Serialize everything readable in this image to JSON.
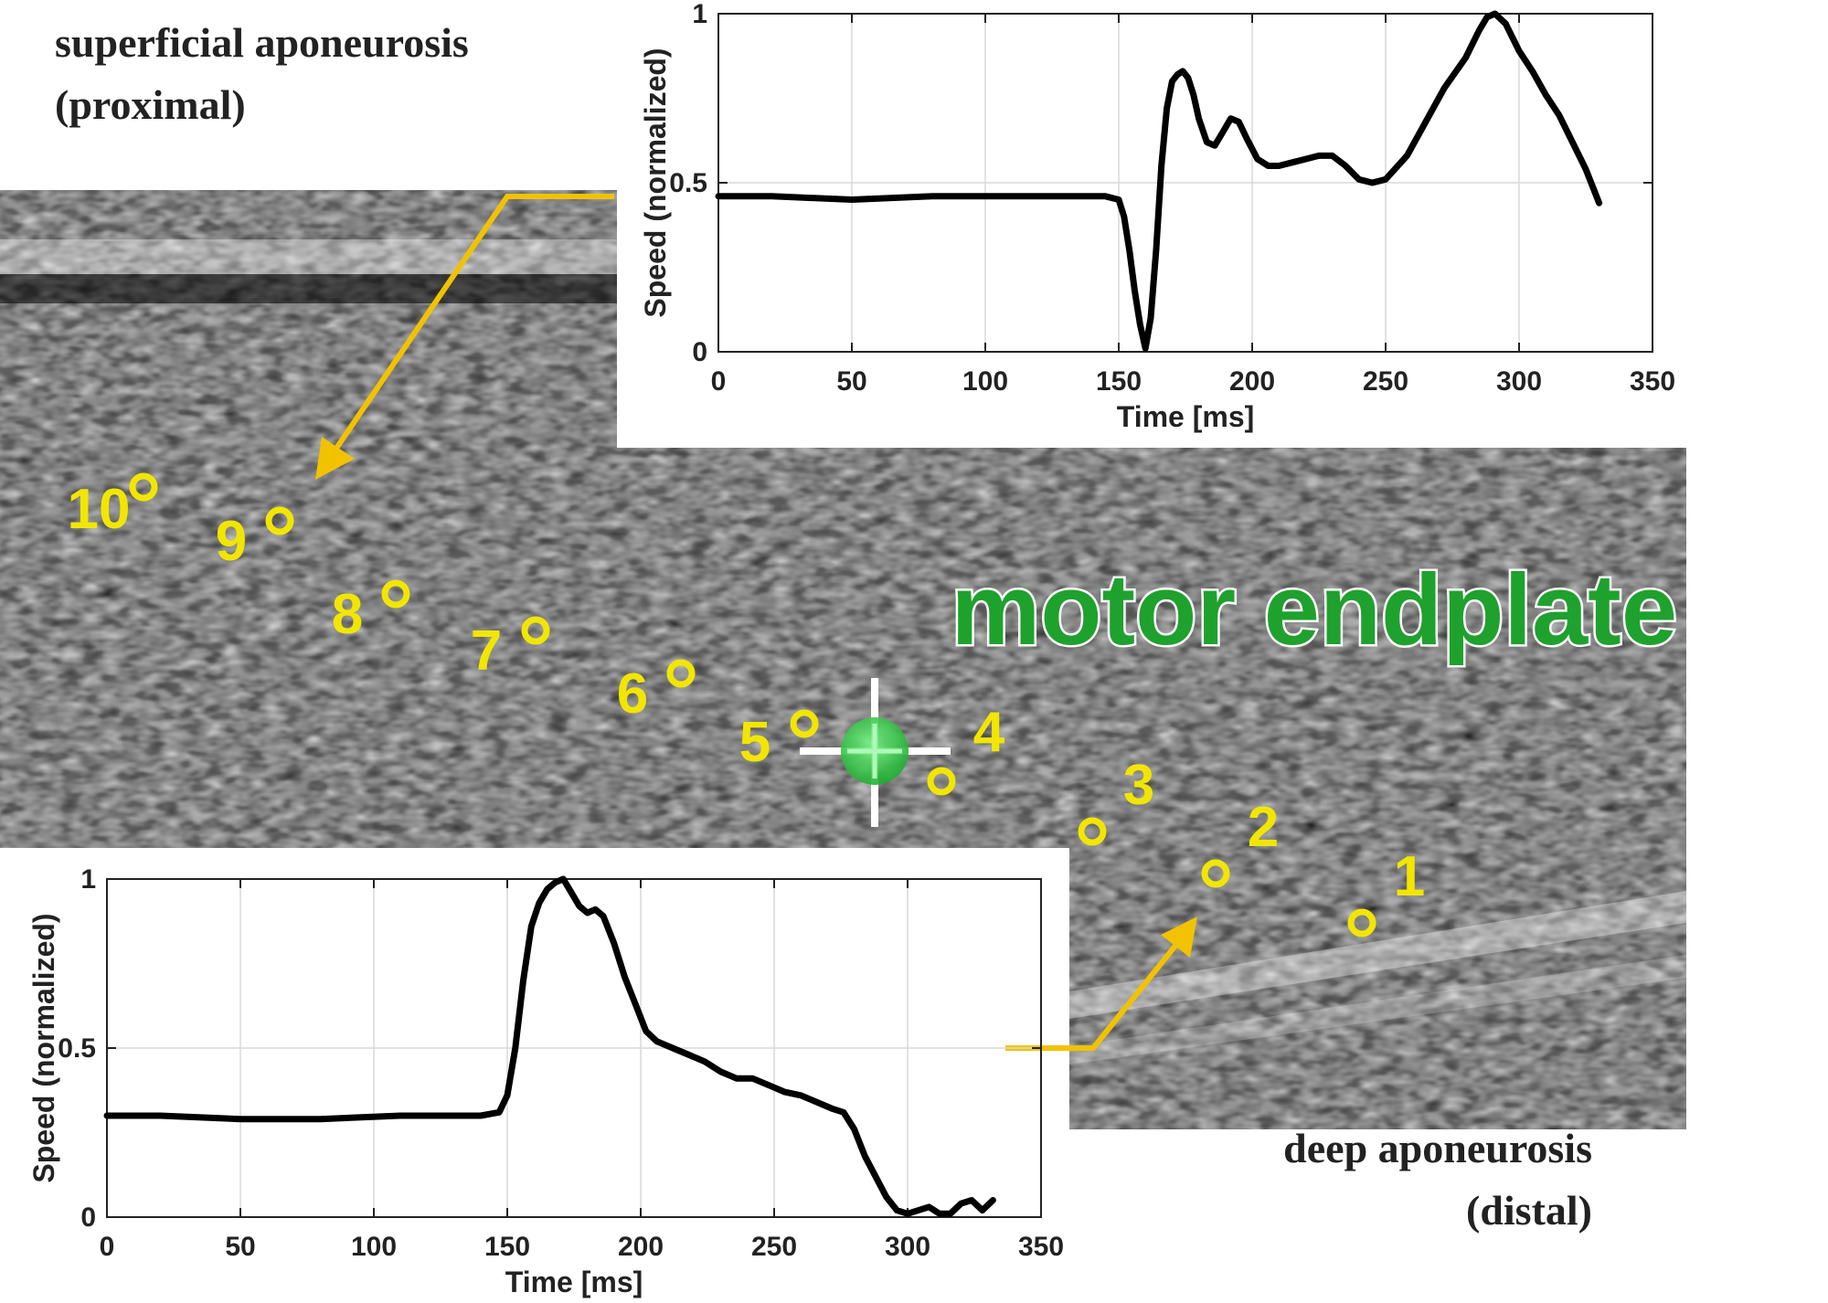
{
  "labels": {
    "top_left_line1": "superficial aponeurosis",
    "top_left_line2": "(proximal)",
    "bottom_right_line1": "deep aponeurosis",
    "bottom_right_line2": "(distal)",
    "center": "motor endplate"
  },
  "markers": [
    {
      "n": "10"
    },
    {
      "n": "9"
    },
    {
      "n": "8"
    },
    {
      "n": "7"
    },
    {
      "n": "6"
    },
    {
      "n": "5"
    },
    {
      "n": "4"
    },
    {
      "n": "3"
    },
    {
      "n": "2"
    },
    {
      "n": "1"
    }
  ],
  "colors": {
    "marker": "#f2e600",
    "arrow": "#f2c200",
    "endplate_text": "#1fa12e",
    "endplate_dot": "#2bd23f",
    "curve": "#000000",
    "grid": "#d9d9d9"
  },
  "chart_data": [
    {
      "type": "line",
      "xlabel": "Time [ms]",
      "ylabel": "Speed (normalized)",
      "xlim": [
        0,
        350
      ],
      "ylim": [
        0,
        1
      ],
      "xticks": [
        "0",
        "50",
        "100",
        "150",
        "200",
        "250",
        "300",
        "350"
      ],
      "yticks": [
        "0",
        "0.5",
        "1"
      ],
      "grid": true,
      "series": [
        {
          "x": [
            0,
            20,
            50,
            80,
            110,
            130,
            145,
            150,
            152,
            154,
            156,
            158,
            160,
            162,
            164,
            166,
            168,
            170,
            172,
            174,
            176,
            178,
            180,
            183,
            186,
            189,
            192,
            195,
            198,
            202,
            206,
            210,
            215,
            220,
            225,
            230,
            235,
            240,
            245,
            250,
            258,
            265,
            272,
            280,
            285,
            288,
            291,
            295,
            300,
            305,
            310,
            315,
            320,
            325,
            330
          ],
          "y": [
            0.46,
            0.46,
            0.45,
            0.46,
            0.46,
            0.46,
            0.46,
            0.45,
            0.4,
            0.3,
            0.18,
            0.08,
            0.01,
            0.1,
            0.3,
            0.55,
            0.72,
            0.8,
            0.82,
            0.83,
            0.81,
            0.76,
            0.69,
            0.62,
            0.61,
            0.65,
            0.69,
            0.68,
            0.63,
            0.57,
            0.55,
            0.55,
            0.56,
            0.57,
            0.58,
            0.58,
            0.55,
            0.51,
            0.5,
            0.51,
            0.58,
            0.68,
            0.78,
            0.87,
            0.95,
            0.99,
            1.0,
            0.97,
            0.89,
            0.83,
            0.76,
            0.7,
            0.62,
            0.54,
            0.44
          ]
        }
      ]
    },
    {
      "type": "line",
      "xlabel": "Time [ms]",
      "ylabel": "Speed (normalized)",
      "xlim": [
        0,
        350
      ],
      "ylim": [
        0,
        1
      ],
      "xticks": [
        "0",
        "50",
        "100",
        "150",
        "200",
        "250",
        "300",
        "350"
      ],
      "yticks": [
        "0",
        "0.5",
        "1"
      ],
      "grid": true,
      "series": [
        {
          "x": [
            0,
            20,
            50,
            80,
            110,
            130,
            140,
            147,
            150,
            153,
            156,
            159,
            162,
            165,
            168,
            171,
            174,
            177,
            180,
            183,
            186,
            190,
            194,
            198,
            202,
            206,
            212,
            218,
            224,
            230,
            236,
            242,
            248,
            254,
            260,
            266,
            272,
            276,
            280,
            284,
            288,
            292,
            296,
            300,
            304,
            308,
            312,
            316,
            320,
            324,
            328,
            332
          ],
          "y": [
            0.3,
            0.3,
            0.29,
            0.29,
            0.3,
            0.3,
            0.3,
            0.31,
            0.36,
            0.5,
            0.7,
            0.86,
            0.93,
            0.97,
            0.99,
            1.0,
            0.96,
            0.92,
            0.9,
            0.91,
            0.89,
            0.81,
            0.71,
            0.63,
            0.55,
            0.52,
            0.5,
            0.48,
            0.46,
            0.43,
            0.41,
            0.41,
            0.39,
            0.37,
            0.36,
            0.34,
            0.32,
            0.31,
            0.26,
            0.18,
            0.12,
            0.06,
            0.02,
            0.01,
            0.02,
            0.03,
            0.01,
            0.01,
            0.04,
            0.05,
            0.02,
            0.05
          ]
        }
      ]
    }
  ]
}
